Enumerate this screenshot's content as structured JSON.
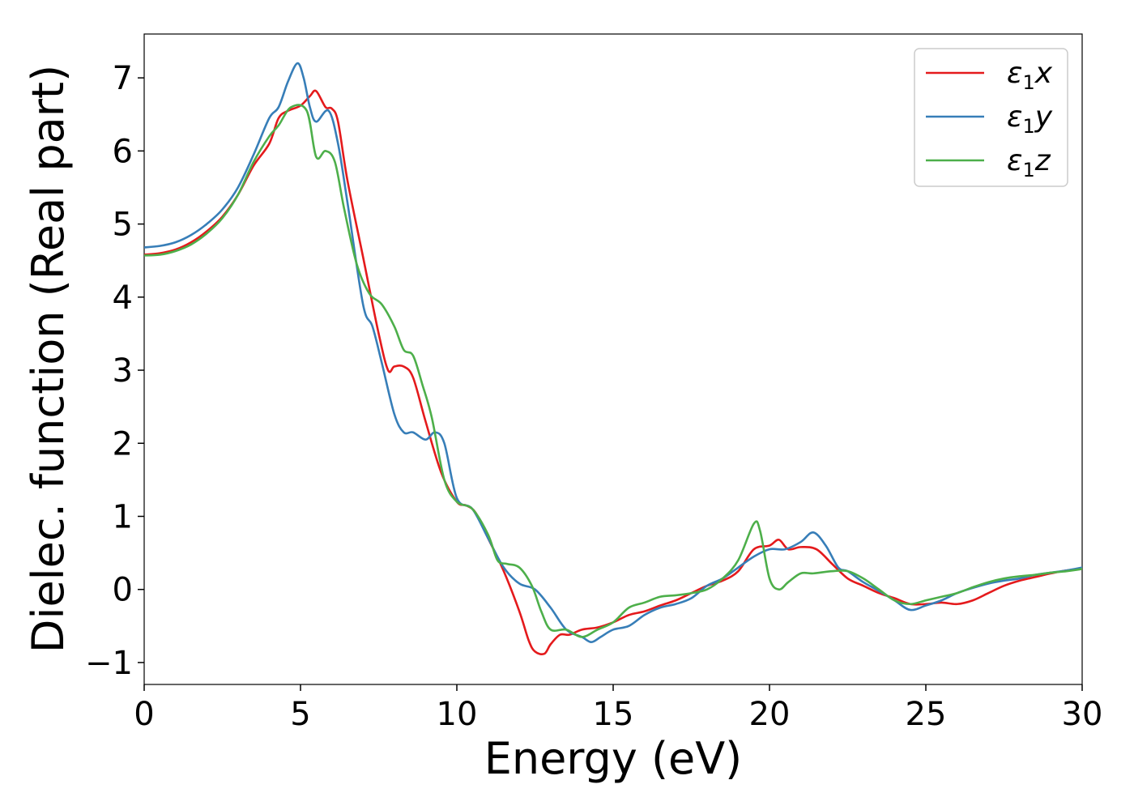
{
  "chart_data": {
    "type": "line",
    "title": "",
    "xlabel": "Energy (eV)",
    "ylabel": "Dielec. function (Real part)",
    "xlim": [
      0,
      30
    ],
    "ylim": [
      -1.3,
      7.6
    ],
    "xticks": [
      0,
      5,
      10,
      15,
      20,
      25,
      30
    ],
    "xtick_labels": [
      "0",
      "5",
      "10",
      "15",
      "20",
      "25",
      "30"
    ],
    "yticks": [
      -1,
      0,
      1,
      2,
      3,
      4,
      5,
      6,
      7
    ],
    "ytick_labels": [
      "−1",
      "0",
      "1",
      "2",
      "3",
      "4",
      "5",
      "6",
      "7"
    ],
    "grid": false,
    "legend_position": "top-right",
    "series": [
      {
        "name": "ε₁x",
        "label_main": "ε",
        "label_sub": "1",
        "label_tail": "x",
        "color": "#e41a1c",
        "x": [
          0,
          0.5,
          1,
          1.5,
          2,
          2.5,
          3,
          3.5,
          4,
          4.3,
          4.6,
          5,
          5.3,
          5.5,
          5.8,
          6,
          6.2,
          6.5,
          7,
          7.5,
          7.8,
          8,
          8.3,
          8.6,
          9,
          9.5,
          10,
          10.3,
          10.6,
          11,
          11.5,
          12,
          12.3,
          12.5,
          12.8,
          13,
          13.3,
          13.6,
          14,
          14.5,
          15,
          15.5,
          16,
          16.5,
          17,
          17.5,
          18,
          18.5,
          19,
          19.5,
          20,
          20.3,
          20.6,
          21,
          21.5,
          22,
          22.5,
          23,
          23.5,
          24,
          24.5,
          25,
          25.5,
          26,
          26.5,
          27,
          27.5,
          28,
          28.5,
          29,
          29.5,
          30
        ],
        "y": [
          4.58,
          4.6,
          4.65,
          4.75,
          4.9,
          5.1,
          5.4,
          5.8,
          6.1,
          6.45,
          6.55,
          6.62,
          6.75,
          6.82,
          6.6,
          6.58,
          6.4,
          5.6,
          4.55,
          3.5,
          3.0,
          3.05,
          3.05,
          2.9,
          2.3,
          1.6,
          1.2,
          1.15,
          1.05,
          0.7,
          0.25,
          -0.3,
          -0.7,
          -0.85,
          -0.88,
          -0.75,
          -0.62,
          -0.62,
          -0.55,
          -0.52,
          -0.45,
          -0.35,
          -0.3,
          -0.22,
          -0.15,
          -0.05,
          0.05,
          0.12,
          0.25,
          0.55,
          0.6,
          0.68,
          0.55,
          0.58,
          0.55,
          0.35,
          0.15,
          0.05,
          -0.05,
          -0.12,
          -0.2,
          -0.2,
          -0.18,
          -0.2,
          -0.15,
          -0.05,
          0.05,
          0.12,
          0.17,
          0.22,
          0.26,
          0.28
        ]
      },
      {
        "name": "ε₁y",
        "label_main": "ε",
        "label_sub": "1",
        "label_tail": "y",
        "color": "#377eb8",
        "x": [
          0,
          0.5,
          1,
          1.5,
          2,
          2.5,
          3,
          3.5,
          4,
          4.3,
          4.6,
          4.9,
          5.1,
          5.3,
          5.5,
          5.9,
          6.2,
          6.5,
          7,
          7.3,
          7.6,
          8,
          8.3,
          8.6,
          9,
          9.3,
          9.6,
          10,
          10.5,
          11,
          11.5,
          12,
          12.5,
          13,
          13.5,
          14,
          14.3,
          14.6,
          15,
          15.5,
          16,
          16.5,
          17,
          17.5,
          18,
          18.5,
          19,
          19.5,
          20,
          20.5,
          21,
          21.4,
          21.8,
          22.2,
          22.5,
          23,
          23.5,
          24,
          24.5,
          25,
          25.5,
          26,
          26.5,
          27,
          27.5,
          28,
          28.5,
          29,
          29.5,
          30
        ],
        "y": [
          4.68,
          4.7,
          4.75,
          4.85,
          5.0,
          5.2,
          5.5,
          5.95,
          6.45,
          6.6,
          6.95,
          7.2,
          7.0,
          6.6,
          6.4,
          6.55,
          6.1,
          5.3,
          3.9,
          3.6,
          3.1,
          2.4,
          2.15,
          2.15,
          2.05,
          2.15,
          2.0,
          1.25,
          1.1,
          0.7,
          0.3,
          0.08,
          0.0,
          -0.25,
          -0.55,
          -0.65,
          -0.72,
          -0.65,
          -0.55,
          -0.5,
          -0.35,
          -0.25,
          -0.2,
          -0.12,
          0.05,
          0.15,
          0.3,
          0.45,
          0.55,
          0.55,
          0.65,
          0.78,
          0.6,
          0.3,
          0.25,
          0.1,
          -0.02,
          -0.15,
          -0.28,
          -0.22,
          -0.15,
          -0.05,
          0.02,
          0.08,
          0.12,
          0.15,
          0.2,
          0.23,
          0.26,
          0.3
        ]
      },
      {
        "name": "ε₁z",
        "label_main": "ε",
        "label_sub": "1",
        "label_tail": "z",
        "color": "#4daf4a",
        "x": [
          0,
          0.5,
          1,
          1.5,
          2,
          2.5,
          3,
          3.5,
          4,
          4.3,
          4.7,
          5.2,
          5.5,
          5.8,
          6.1,
          6.4,
          6.8,
          7.2,
          7.6,
          8,
          8.3,
          8.6,
          8.9,
          9.2,
          9.6,
          10,
          10.5,
          11,
          11.3,
          11.6,
          12,
          12.4,
          12.7,
          13,
          13.5,
          14,
          14.5,
          15,
          15.5,
          16,
          16.5,
          17,
          17.5,
          18,
          18.5,
          19,
          19.5,
          19.7,
          20,
          20.3,
          20.6,
          21,
          21.4,
          22,
          22.5,
          23,
          23.5,
          24,
          24.5,
          25,
          25.5,
          26,
          26.5,
          27,
          27.5,
          28,
          28.5,
          29,
          29.5,
          30
        ],
        "y": [
          4.57,
          4.58,
          4.63,
          4.72,
          4.87,
          5.08,
          5.4,
          5.85,
          6.2,
          6.35,
          6.6,
          6.55,
          5.92,
          6.0,
          5.85,
          5.2,
          4.45,
          4.05,
          3.9,
          3.6,
          3.28,
          3.2,
          2.8,
          2.35,
          1.5,
          1.2,
          1.1,
          0.75,
          0.4,
          0.35,
          0.3,
          0.05,
          -0.3,
          -0.55,
          -0.55,
          -0.65,
          -0.55,
          -0.45,
          -0.25,
          -0.18,
          -0.1,
          -0.08,
          -0.05,
          0.0,
          0.15,
          0.4,
          0.9,
          0.8,
          0.15,
          0.0,
          0.1,
          0.22,
          0.22,
          0.25,
          0.25,
          0.15,
          0.0,
          -0.15,
          -0.2,
          -0.15,
          -0.1,
          -0.05,
          0.03,
          0.1,
          0.15,
          0.18,
          0.2,
          0.23,
          0.25,
          0.28
        ]
      }
    ]
  }
}
